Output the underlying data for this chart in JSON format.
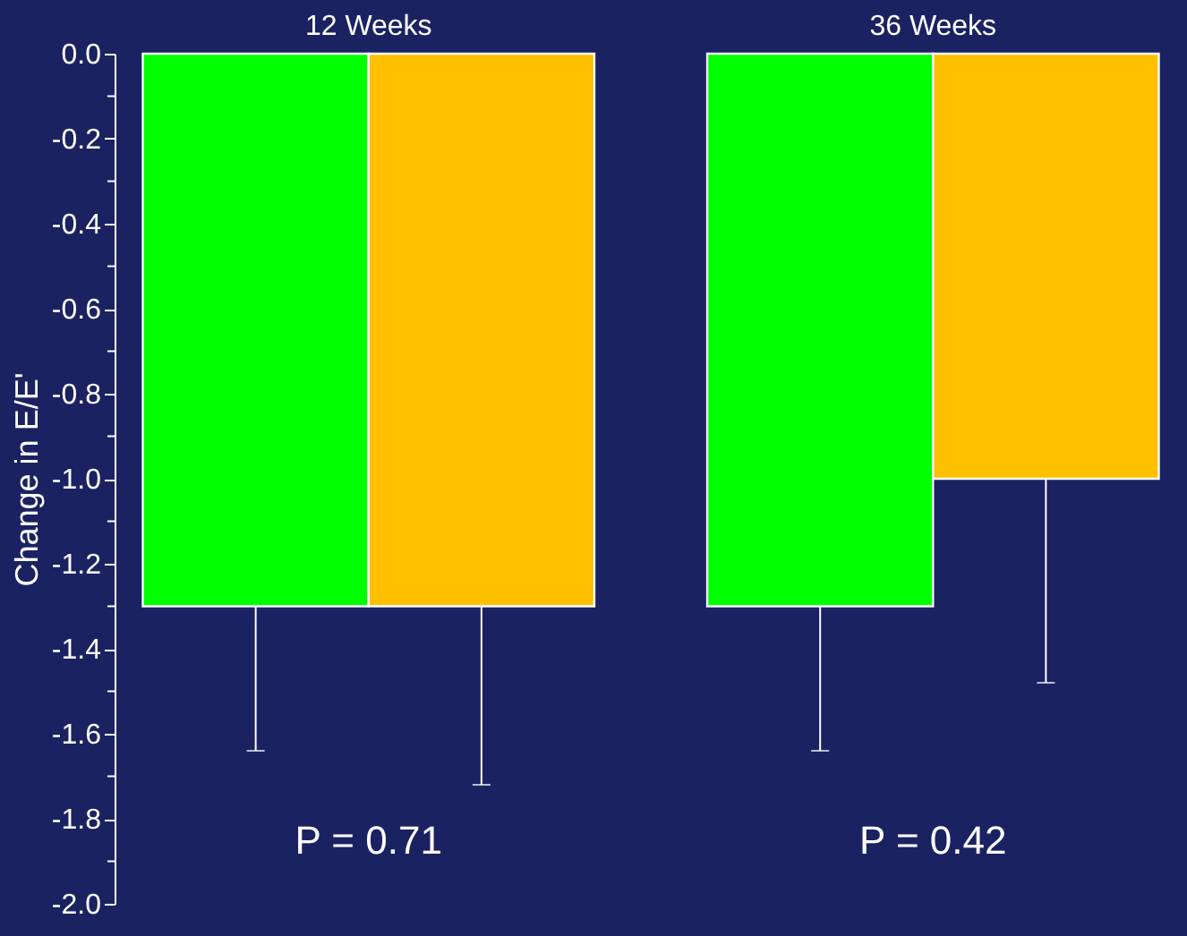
{
  "chart_data": {
    "type": "bar",
    "ylabel": "Change in E/E'",
    "categories": [
      "12 Weeks",
      "36 Weeks"
    ],
    "series": [
      {
        "color": "#00ff00",
        "values": [
          -1.3,
          -1.3
        ],
        "errors": [
          [
            -1.64,
            -1.3
          ],
          [
            -1.64,
            -1.3
          ]
        ]
      },
      {
        "color": "#ffc000",
        "values": [
          -1.3,
          -1.0
        ],
        "errors": [
          [
            -1.72,
            -1.3
          ],
          [
            -1.48,
            -1.0
          ]
        ]
      }
    ],
    "ylim": [
      -2.0,
      0.0
    ],
    "yticks": [
      {
        "value": 0,
        "label": "0.0"
      },
      {
        "value": -0.1,
        "label": null
      },
      {
        "value": -0.2,
        "label": "-0.2"
      },
      {
        "value": -0.3,
        "label": null
      },
      {
        "value": -0.4,
        "label": "-0.4"
      },
      {
        "value": -0.5,
        "label": null
      },
      {
        "value": -0.6,
        "label": "-0.6"
      },
      {
        "value": -0.7,
        "label": null
      },
      {
        "value": -0.8,
        "label": "-0.8"
      },
      {
        "value": -0.9,
        "label": null
      },
      {
        "value": -1.0,
        "label": "-1.0"
      },
      {
        "value": -1.1,
        "label": null
      },
      {
        "value": -1.2,
        "label": "-1.2"
      },
      {
        "value": -1.3,
        "label": null
      },
      {
        "value": -1.4,
        "label": "-1.4"
      },
      {
        "value": -1.5,
        "label": null
      },
      {
        "value": -1.6,
        "label": "-1.6"
      },
      {
        "value": -1.7,
        "label": null
      },
      {
        "value": -1.8,
        "label": "-1.8"
      },
      {
        "value": -1.9,
        "label": null
      },
      {
        "value": -2.0,
        "label": "-2.0"
      }
    ],
    "annotations": [
      "P = 0.71",
      "P = 0.42"
    ],
    "grid": false,
    "legend": false
  }
}
